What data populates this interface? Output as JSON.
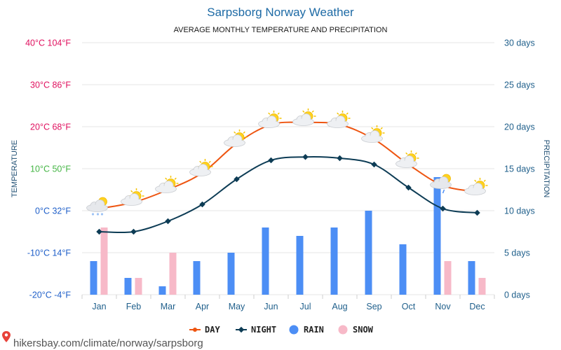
{
  "chart_data": {
    "type": "line+bar",
    "title": "Sarpsborg Norway Weather",
    "subtitle": "AVERAGE MONTHLY TEMPERATURE AND PRECIPITATION",
    "categories": [
      "Jan",
      "Feb",
      "Mar",
      "Apr",
      "May",
      "Jun",
      "Jul",
      "Aug",
      "Sep",
      "Oct",
      "Nov",
      "Dec"
    ],
    "left_axis": {
      "label": "TEMPERATURE",
      "range_c": [
        -20,
        40
      ],
      "ticks": [
        {
          "value": 40,
          "label": "40°C 104°F",
          "color": "#e0115f"
        },
        {
          "value": 30,
          "label": "30°C 86°F",
          "color": "#e0115f"
        },
        {
          "value": 20,
          "label": "20°C 68°F",
          "color": "#e0115f"
        },
        {
          "value": 10,
          "label": "10°C 50°F",
          "color": "#44b544"
        },
        {
          "value": 0,
          "label": "0°C 32°F",
          "color": "#1f5fc9"
        },
        {
          "value": -10,
          "label": "-10°C 14°F",
          "color": "#1f5fc9"
        },
        {
          "value": -20,
          "label": "-20°C -4°F",
          "color": "#1f5fc9"
        }
      ]
    },
    "right_axis": {
      "label": "PRECIPITATION",
      "range_days": [
        0,
        30
      ],
      "ticks": [
        {
          "value": 30,
          "label": "30 days"
        },
        {
          "value": 25,
          "label": "25 days"
        },
        {
          "value": 20,
          "label": "20 days"
        },
        {
          "value": 15,
          "label": "15 days"
        },
        {
          "value": 10,
          "label": "10 days"
        },
        {
          "value": 5,
          "label": "5 days"
        },
        {
          "value": 0,
          "label": "0 days"
        }
      ]
    },
    "series": [
      {
        "name": "DAY",
        "type": "line",
        "axis": "left",
        "color": "#ee5511",
        "values": [
          0.5,
          2,
          5,
          9,
          16,
          20.5,
          21,
          20.5,
          17,
          11,
          6,
          4.5
        ]
      },
      {
        "name": "NIGHT",
        "type": "line",
        "axis": "left",
        "color": "#0d3c55",
        "values": [
          -5,
          -5,
          -2.5,
          1.5,
          7.5,
          12,
          12.8,
          12.5,
          11,
          5.5,
          0.5,
          -0.5
        ]
      },
      {
        "name": "RAIN",
        "type": "bar",
        "axis": "right",
        "color": "#4c8ef5",
        "values": [
          4,
          2,
          1,
          4,
          5,
          8,
          7,
          8,
          10,
          6,
          14,
          4
        ]
      },
      {
        "name": "SNOW",
        "type": "bar",
        "axis": "right",
        "color": "#f7b9c8",
        "values": [
          8,
          2,
          5,
          0,
          0,
          0,
          0,
          0,
          0,
          0,
          4,
          2
        ]
      }
    ],
    "weather_icons": [
      "cloud-snow",
      "sun-cloud",
      "sun-cloud",
      "sun-cloud",
      "sun-cloud",
      "sun-cloud",
      "sun-cloud",
      "sun-cloud",
      "sun-cloud",
      "sun-cloud",
      "cloud-rain",
      "sun-cloud"
    ],
    "legend": [
      {
        "label": "DAY",
        "color": "#ee5511",
        "marker": "line-dot"
      },
      {
        "label": "NIGHT",
        "color": "#0d3c55",
        "marker": "line-diamond"
      },
      {
        "label": "RAIN",
        "color": "#4c8ef5",
        "marker": "circle"
      },
      {
        "label": "SNOW",
        "color": "#f7b9c8",
        "marker": "circle"
      }
    ],
    "legend_position": "bottom-center",
    "grid": true
  },
  "source_text": "hikersbay.com/climate/norway/sarpsborg",
  "source_icon": "location-pin-icon"
}
